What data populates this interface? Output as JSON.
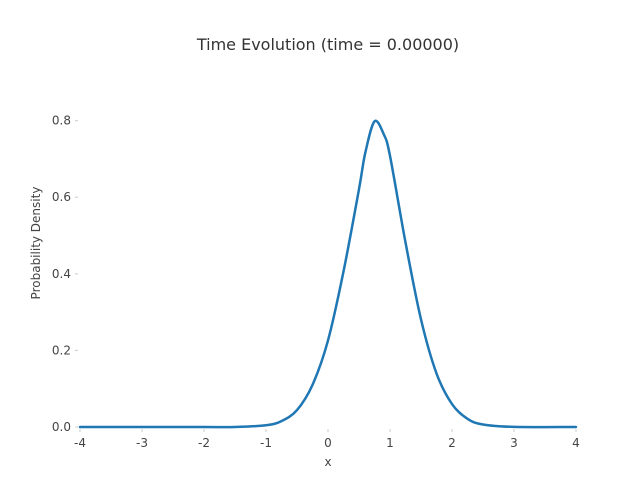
{
  "chart_data": {
    "type": "line",
    "title": "Time Evolution (time = 0.00000)",
    "xlabel": "x",
    "ylabel": "Probability Density",
    "xlim": [
      -4,
      4
    ],
    "ylim": [
      0,
      0.88
    ],
    "xticks": [
      "-4",
      "-3",
      "-2",
      "-1",
      "0",
      "1",
      "2",
      "3",
      "4"
    ],
    "yticks": [
      "0.0",
      "0.2",
      "0.4",
      "0.6",
      "0.8"
    ],
    "grid": false,
    "legend": "none",
    "series": [
      {
        "color": "#1f77b4",
        "x": [
          -4.0,
          -3.0,
          -2.0,
          -1.5,
          -1.0,
          -0.75,
          -0.5,
          -0.25,
          0.0,
          0.25,
          0.5,
          0.6,
          0.75,
          0.9,
          1.0,
          1.25,
          1.5,
          1.75,
          2.0,
          2.25,
          2.5,
          3.0,
          4.0
        ],
        "y": [
          0.0,
          0.0,
          0.0,
          0.0,
          0.0046,
          0.0154,
          0.0442,
          0.11,
          0.226,
          0.406,
          0.621,
          0.715,
          0.798,
          0.764,
          0.708,
          0.482,
          0.281,
          0.14,
          0.06,
          0.0215,
          0.0066,
          0.0004,
          0.0
        ]
      }
    ]
  }
}
